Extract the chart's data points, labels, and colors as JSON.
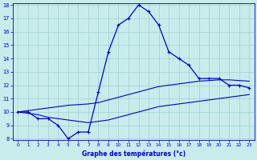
{
  "xlabel": "Graphe des températures (°c)",
  "bg_color": "#c8ecec",
  "grid_color": "#a0d0d0",
  "line_color": "#0000cc",
  "hours": [
    0,
    1,
    2,
    3,
    4,
    5,
    6,
    7,
    8,
    9,
    10,
    11,
    12,
    13,
    14,
    15,
    16,
    17,
    18,
    19,
    20,
    21,
    22,
    23
  ],
  "temp": [
    10.0,
    10.0,
    9.5,
    9.5,
    9.0,
    8.0,
    8.5,
    8.5,
    11.5,
    14.5,
    16.5,
    17.0,
    18.0,
    17.5,
    16.5,
    14.5,
    14.0,
    13.5,
    12.5,
    12.5,
    12.5,
    12.0,
    12.0,
    11.8
  ],
  "tmin": [
    10.0,
    9.9,
    9.8,
    9.6,
    9.5,
    9.4,
    9.3,
    9.2,
    9.3,
    9.4,
    9.6,
    9.8,
    10.0,
    10.2,
    10.4,
    10.5,
    10.6,
    10.7,
    10.8,
    10.9,
    11.0,
    11.1,
    11.2,
    11.3
  ],
  "tmax": [
    10.0,
    10.1,
    10.2,
    10.3,
    10.4,
    10.5,
    10.55,
    10.6,
    10.7,
    10.9,
    11.1,
    11.3,
    11.5,
    11.7,
    11.9,
    12.0,
    12.1,
    12.2,
    12.3,
    12.35,
    12.4,
    12.4,
    12.35,
    12.3
  ],
  "ylim": [
    8,
    18
  ],
  "yticks": [
    8,
    9,
    10,
    11,
    12,
    13,
    14,
    15,
    16,
    17,
    18
  ],
  "xlim_min": -0.5,
  "xlim_max": 23.5,
  "xticks": [
    0,
    1,
    2,
    3,
    4,
    5,
    6,
    7,
    8,
    9,
    10,
    11,
    12,
    13,
    14,
    15,
    16,
    17,
    18,
    19,
    20,
    21,
    22,
    23
  ]
}
